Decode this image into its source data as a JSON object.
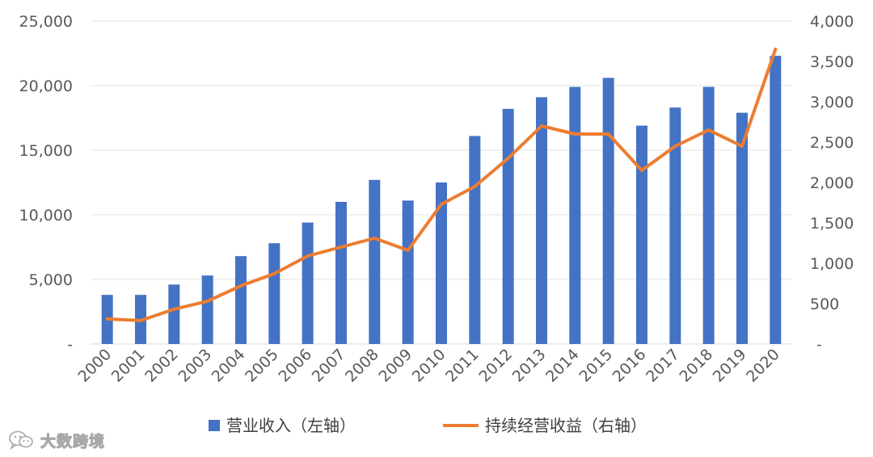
{
  "chart_data": {
    "type": "bar",
    "categories": [
      "2000",
      "2001",
      "2002",
      "2003",
      "2004",
      "2005",
      "2006",
      "2007",
      "2008",
      "2009",
      "2010",
      "2011",
      "2012",
      "2013",
      "2014",
      "2015",
      "2016",
      "2017",
      "2018",
      "2019",
      "2020"
    ],
    "series": [
      {
        "name": "营业收入（左轴）",
        "type": "bar",
        "axis": "left",
        "color": "#4472c4",
        "values": [
          3800,
          3800,
          4600,
          5300,
          6800,
          7800,
          9400,
          11000,
          12700,
          11100,
          12500,
          16100,
          18200,
          19100,
          19900,
          20600,
          16900,
          18300,
          19900,
          17900,
          22300
        ]
      },
      {
        "name": "持续经营收益（右轴）",
        "type": "line",
        "axis": "right",
        "color": "#ed7d31",
        "values": [
          310,
          290,
          430,
          530,
          720,
          870,
          1090,
          1200,
          1310,
          1160,
          1730,
          1950,
          2300,
          2700,
          2600,
          2600,
          2150,
          2450,
          2650,
          2450,
          3650
        ]
      }
    ],
    "y_left": {
      "min": 0,
      "max": 25000,
      "ticks": [
        0,
        5000,
        10000,
        15000,
        20000,
        25000
      ],
      "tick_labels": [
        "-",
        "5,000",
        "10,000",
        "15,000",
        "20,000",
        "25,000"
      ]
    },
    "y_right": {
      "min": 0,
      "max": 4000,
      "ticks": [
        0,
        500,
        1000,
        1500,
        2000,
        2500,
        3000,
        3500,
        4000
      ],
      "tick_labels": [
        "-",
        "500",
        "1,000",
        "1,500",
        "2,000",
        "2,500",
        "3,000",
        "3,500",
        "4,000"
      ]
    },
    "grid": true,
    "legend_position": "bottom"
  },
  "watermark": {
    "text": "大数跨境",
    "icon": "wechat-logo-icon"
  }
}
